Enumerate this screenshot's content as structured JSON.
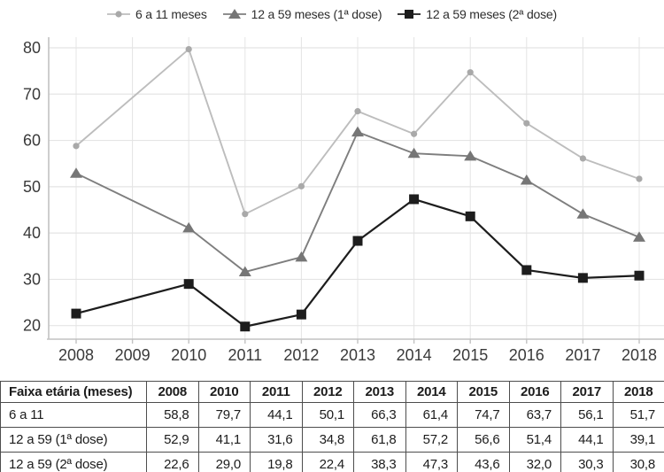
{
  "legend": {
    "items": [
      {
        "label": "6 a 11 meses",
        "marker": "circle"
      },
      {
        "label": "12 a 59 meses (1ª dose)",
        "marker": "triangle"
      },
      {
        "label": "12 a 59 meses (2ª dose)",
        "marker": "square"
      }
    ]
  },
  "chart_data": {
    "type": "line",
    "x": [
      2008,
      2010,
      2011,
      2012,
      2013,
      2014,
      2015,
      2016,
      2017,
      2018
    ],
    "x_axis_ticks": [
      2008,
      2009,
      2010,
      2011,
      2012,
      2013,
      2014,
      2015,
      2016,
      2017,
      2018
    ],
    "yticks": [
      20,
      30,
      40,
      50,
      60,
      70,
      80
    ],
    "ylim": [
      17,
      82
    ],
    "grid": true,
    "legend_position": "top",
    "series": [
      {
        "name": "6 a 11 meses",
        "marker": "circle",
        "color": "#bdbdbd",
        "marker_color": "#a9a9a9",
        "values": [
          58.8,
          79.7,
          44.1,
          50.1,
          66.3,
          61.4,
          74.7,
          63.7,
          56.1,
          51.7
        ]
      },
      {
        "name": "12 a 59 meses (1ª dose)",
        "marker": "triangle",
        "color": "#7e7e7e",
        "marker_color": "#767676",
        "values": [
          52.9,
          41.1,
          31.6,
          34.8,
          61.8,
          57.2,
          56.6,
          51.4,
          44.1,
          39.1
        ]
      },
      {
        "name": "12 a 59 meses (2ª dose)",
        "marker": "square",
        "color": "#1d1d1d",
        "marker_color": "#1d1d1d",
        "values": [
          22.6,
          29.0,
          19.8,
          22.4,
          38.3,
          47.3,
          43.6,
          32.0,
          30.3,
          30.8
        ]
      }
    ]
  },
  "table": {
    "header": [
      "Faixa etária (meses)",
      "2008",
      "2010",
      "2011",
      "2012",
      "2013",
      "2014",
      "2015",
      "2016",
      "2017",
      "2018"
    ],
    "rows": [
      {
        "label": "6 a 11",
        "values": [
          "58,8",
          "79,7",
          "44,1",
          "50,1",
          "66,3",
          "61,4",
          "74,7",
          "63,7",
          "56,1",
          "51,7"
        ]
      },
      {
        "label": "12 a 59 (1ª dose)",
        "values": [
          "52,9",
          "41,1",
          "31,6",
          "34,8",
          "61,8",
          "57,2",
          "56,6",
          "51,4",
          "44,1",
          "39,1"
        ]
      },
      {
        "label": "12 a 59 (2ª dose)",
        "values": [
          "22,6",
          "29,0",
          "19,8",
          "22,4",
          "38,3",
          "47,3",
          "43,6",
          "32,0",
          "30,3",
          "30,8"
        ]
      }
    ]
  },
  "colors": {
    "series1_line": "#bdbdbd",
    "series2_line": "#7e7e7e",
    "series3_line": "#1d1d1d",
    "gridline": "#e4e4e4",
    "axis": "#c2c2c2",
    "axis_text": "#3a3a3a",
    "table_border": "#4d4d4d",
    "background": "#ffffff"
  }
}
